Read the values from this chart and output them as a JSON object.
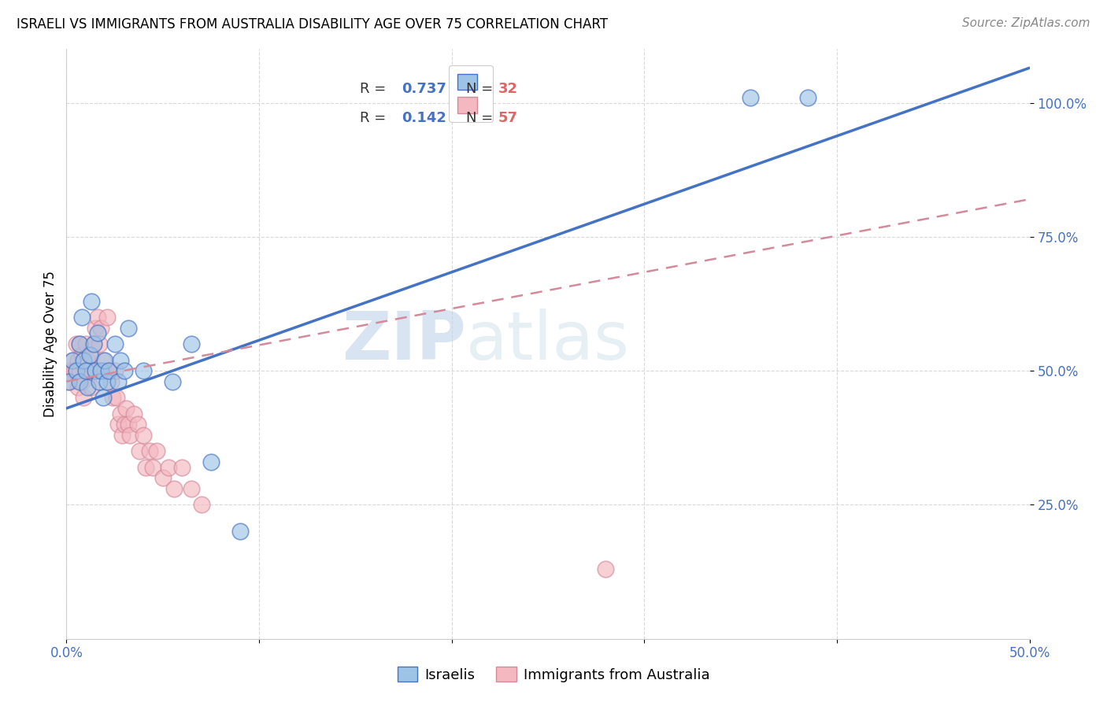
{
  "title": "ISRAELI VS IMMIGRANTS FROM AUSTRALIA DISABILITY AGE OVER 75 CORRELATION CHART",
  "source": "Source: ZipAtlas.com",
  "ylabel": "Disability Age Over 75",
  "xlim": [
    0.0,
    0.5
  ],
  "ylim": [
    0.0,
    1.1
  ],
  "xticks": [
    0.0,
    0.1,
    0.2,
    0.3,
    0.4,
    0.5
  ],
  "xticklabels": [
    "0.0%",
    "",
    "",
    "",
    "",
    "50.0%"
  ],
  "ytick_positions": [
    0.25,
    0.5,
    0.75,
    1.0
  ],
  "yticklabels": [
    "25.0%",
    "50.0%",
    "75.0%",
    "100.0%"
  ],
  "legend_R1": "R = 0.737",
  "legend_N1": "N = 32",
  "legend_R2": "R = 0.142",
  "legend_N2": "N = 57",
  "legend_bottom": [
    "Israelis",
    "Immigrants from Australia"
  ],
  "color_blue": "#9dc3e6",
  "color_pink": "#f4b8c1",
  "color_blue_line": "#4472c4",
  "color_pink_line": "#d48a9a",
  "watermark_ZIP": "ZIP",
  "watermark_atlas": "atlas",
  "blue_line_x0": 0.0,
  "blue_line_y0": 0.43,
  "blue_line_x1": 0.5,
  "blue_line_y1": 1.065,
  "pink_line_x0": 0.0,
  "pink_line_y0": 0.48,
  "pink_line_x1": 0.5,
  "pink_line_y1": 0.82,
  "israelis_x": [
    0.001,
    0.003,
    0.005,
    0.007,
    0.007,
    0.008,
    0.009,
    0.01,
    0.011,
    0.012,
    0.013,
    0.014,
    0.015,
    0.016,
    0.017,
    0.018,
    0.019,
    0.02,
    0.021,
    0.022,
    0.025,
    0.027,
    0.028,
    0.03,
    0.032,
    0.04,
    0.055,
    0.065,
    0.075,
    0.09,
    0.355,
    0.385
  ],
  "israelis_y": [
    0.48,
    0.52,
    0.5,
    0.55,
    0.48,
    0.6,
    0.52,
    0.5,
    0.47,
    0.53,
    0.63,
    0.55,
    0.5,
    0.57,
    0.48,
    0.5,
    0.45,
    0.52,
    0.48,
    0.5,
    0.55,
    0.48,
    0.52,
    0.5,
    0.58,
    0.5,
    0.48,
    0.55,
    0.33,
    0.2,
    1.01,
    1.01
  ],
  "australia_x": [
    0.001,
    0.002,
    0.003,
    0.004,
    0.005,
    0.005,
    0.006,
    0.006,
    0.007,
    0.007,
    0.008,
    0.008,
    0.009,
    0.009,
    0.01,
    0.01,
    0.011,
    0.011,
    0.012,
    0.013,
    0.013,
    0.014,
    0.015,
    0.015,
    0.016,
    0.017,
    0.018,
    0.019,
    0.02,
    0.021,
    0.022,
    0.023,
    0.024,
    0.025,
    0.026,
    0.027,
    0.028,
    0.029,
    0.03,
    0.031,
    0.032,
    0.033,
    0.035,
    0.037,
    0.038,
    0.04,
    0.041,
    0.043,
    0.045,
    0.047,
    0.05,
    0.053,
    0.056,
    0.06,
    0.065,
    0.07,
    0.28
  ],
  "australia_y": [
    0.5,
    0.48,
    0.52,
    0.5,
    0.5,
    0.55,
    0.52,
    0.47,
    0.55,
    0.5,
    0.48,
    0.53,
    0.52,
    0.45,
    0.5,
    0.55,
    0.5,
    0.52,
    0.5,
    0.53,
    0.47,
    0.55,
    0.58,
    0.5,
    0.6,
    0.55,
    0.58,
    0.52,
    0.5,
    0.6,
    0.5,
    0.48,
    0.45,
    0.5,
    0.45,
    0.4,
    0.42,
    0.38,
    0.4,
    0.43,
    0.4,
    0.38,
    0.42,
    0.4,
    0.35,
    0.38,
    0.32,
    0.35,
    0.32,
    0.35,
    0.3,
    0.32,
    0.28,
    0.32,
    0.28,
    0.25,
    0.13
  ],
  "tick_color": "#4472c4",
  "grid_color": "#d0d0d0",
  "title_fontsize": 12,
  "source_fontsize": 11,
  "axis_fontsize": 12,
  "legend_fontsize": 13
}
